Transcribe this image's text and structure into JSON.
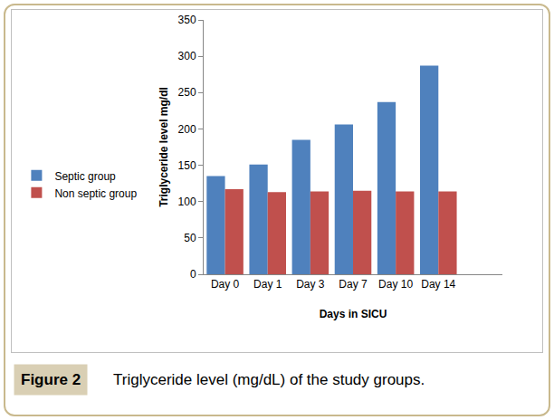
{
  "chart_data": {
    "type": "bar",
    "title": "Triglyceride level (mg/dL) of the study groups.",
    "annotations": [
      "Figure 2"
    ],
    "x_label": "Days in SICU",
    "y_label": "Triglyceride level mg/dl",
    "categories": [
      "Day 0",
      "Day 1",
      "Day 3",
      "Day 7",
      "Day 10",
      "Day 14",
      null
    ],
    "series": [
      {
        "name": "Septic group",
        "color": "#4f81bd",
        "values": [
          135,
          151,
          185,
          206,
          237,
          287,
          null
        ]
      },
      {
        "name": "Non septic group",
        "color": "#c0504d",
        "values": [
          117,
          113,
          114,
          115,
          114,
          114,
          null
        ]
      }
    ],
    "ylim": [
      0,
      350
    ],
    "yticks": [
      0,
      50,
      100,
      150,
      200,
      250,
      300,
      350
    ],
    "grid": false,
    "legend": "left"
  }
}
